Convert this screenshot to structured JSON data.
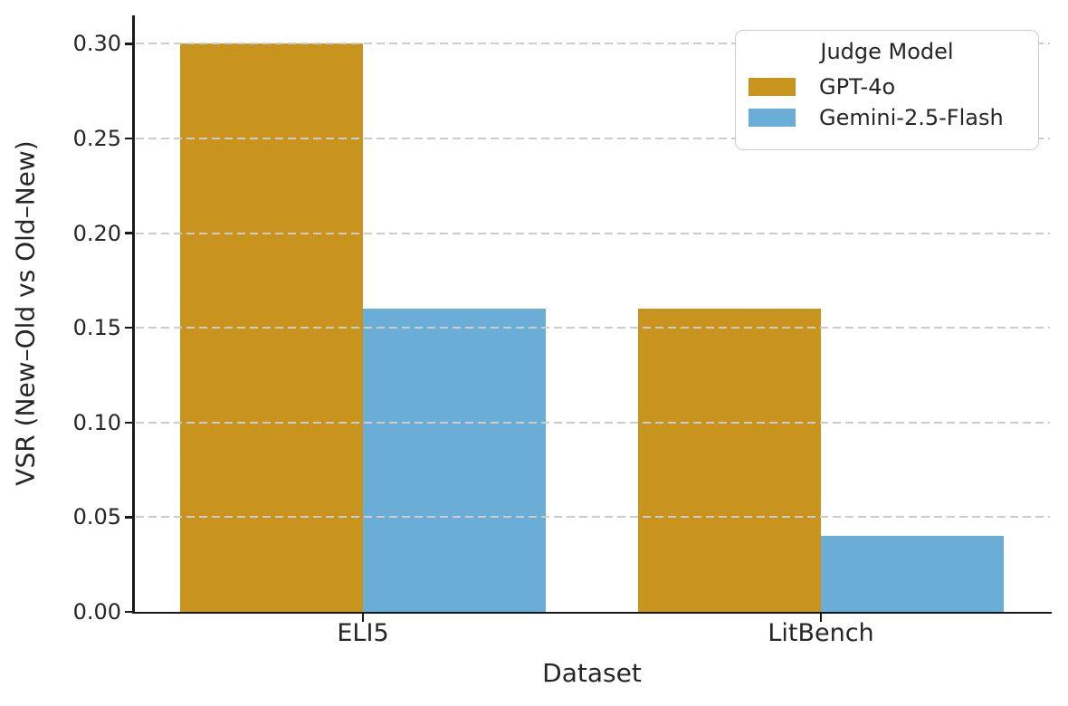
{
  "figure": {
    "background": "#ffffff",
    "text_color": "#262626",
    "spine_color": "#1a1a1a",
    "grid_color": "#cccccc"
  },
  "chart_data": {
    "type": "bar",
    "categories": [
      "ELI5",
      "LitBench"
    ],
    "series": [
      {
        "name": "GPT-4o",
        "color": "#C8941E",
        "values": [
          0.3,
          0.16
        ]
      },
      {
        "name": "Gemini-2.5-Flash",
        "color": "#6AAED7",
        "values": [
          0.16,
          0.04
        ]
      }
    ],
    "title": "",
    "xlabel": "Dataset",
    "ylabel": "VSR (New–Old vs Old–New)",
    "ylim": [
      0,
      0.315
    ],
    "yticks": [
      0.0,
      0.05,
      0.1,
      0.15,
      0.2,
      0.25,
      0.3
    ],
    "ytick_labels": [
      "0.00",
      "0.05",
      "0.10",
      "0.15",
      "0.20",
      "0.25",
      "0.30"
    ],
    "grid": "horizontal-dashed",
    "grid_above_bars": true,
    "legend_title": "Judge Model",
    "legend_position": "upper right"
  }
}
